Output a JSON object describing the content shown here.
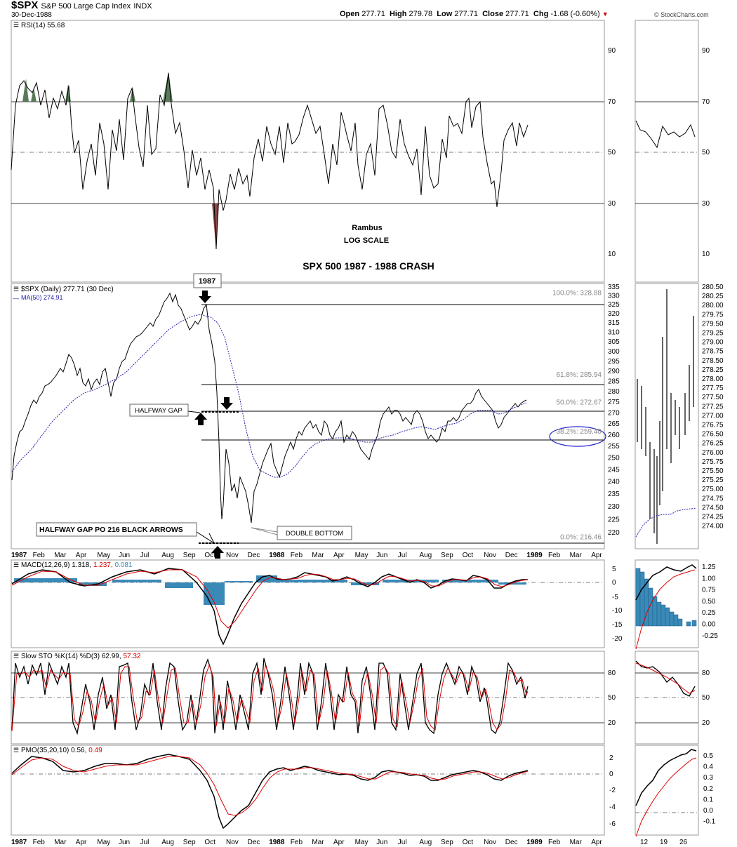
{
  "header": {
    "symbol": "$SPX",
    "name": "S&P 500 Large Cap Index",
    "exchange": "INDX",
    "date": "30-Dec-1988",
    "open_label": "Open",
    "open": "277.71",
    "high_label": "High",
    "high": "279.78",
    "low_label": "Low",
    "low": "277.71",
    "close_label": "Close",
    "close": "277.71",
    "chg_label": "Chg",
    "chg": "-1.68 (-0.60%)",
    "watermark": "© StockCharts.com"
  },
  "annotations": {
    "author": "Rambus",
    "scale": "LOG SCALE",
    "title": "SPX 500 1987 - 1988 CRASH",
    "top_label": "1987",
    "halfway_gap": "HALFWAY GAP",
    "gap_po": "HALFWAY GAP PO 216 BLACK ARROWS",
    "double_bottom": "DOUBLE BOTTOM"
  },
  "colors": {
    "price": "#000000",
    "ma": "#2222aa",
    "signal": "#dd0000",
    "histogram": "#3a8ab8",
    "rsi_over": "#5a7a5a",
    "grid": "#000000",
    "ellipse": "#2222cc"
  },
  "chart_data": [
    {
      "type": "line",
      "name": "RSI",
      "legend": "RSI(14) 55.68",
      "y_ticks": [
        "90",
        "70",
        "50",
        "30",
        "10"
      ],
      "ylim": [
        0,
        100
      ],
      "levels": [
        70,
        50,
        30
      ],
      "ticks_daily": [
        "90",
        "70",
        "50",
        "30",
        "10"
      ],
      "weekly_x_labels": [
        "12",
        "19",
        "26"
      ]
    },
    {
      "type": "line",
      "name": "Price",
      "legend_price": "$SPX (Daily) 277.71 (30 Dec)",
      "legend_ma": "MA(50) 274.91",
      "scale": "log",
      "ylim": [
        214,
        337
      ],
      "y_ticks": [
        "335",
        "330",
        "325",
        "320",
        "315",
        "310",
        "305",
        "300",
        "295",
        "290",
        "285",
        "280",
        "275",
        "270",
        "265",
        "260",
        "255",
        "250",
        "245",
        "240",
        "235",
        "230",
        "225",
        "220"
      ],
      "fib_levels": [
        {
          "label": "100.0%: 328.88",
          "value": 328.88
        },
        {
          "label": "61.8%: 285.94",
          "value": 285.94
        },
        {
          "label": "50.0%: 272.67",
          "value": 272.67
        },
        {
          "label": "38.2%: 259.40",
          "value": 259.4
        },
        {
          "label": "0.0%: 216.46",
          "value": 216.46
        }
      ],
      "x_labels": [
        "1987",
        "Feb",
        "Mar",
        "Apr",
        "May",
        "Jun",
        "Jul",
        "Aug",
        "Sep",
        "Oct",
        "Nov",
        "Dec",
        "1988",
        "Feb",
        "Mar",
        "Apr",
        "May",
        "Jun",
        "Jul",
        "Aug",
        "Sep",
        "Oct",
        "Nov",
        "Dec",
        "1989",
        "Feb",
        "Mar",
        "Apr"
      ],
      "key_points": [
        {
          "date": "1987-01",
          "value": 246
        },
        {
          "date": "1987-02",
          "value": 282
        },
        {
          "date": "1987-03",
          "value": 295
        },
        {
          "date": "1987-04",
          "value": 282
        },
        {
          "date": "1987-05",
          "value": 288
        },
        {
          "date": "1987-06",
          "value": 300
        },
        {
          "date": "1987-07",
          "value": 316
        },
        {
          "date": "1987-08",
          "value": 334
        },
        {
          "date": "1987-09",
          "value": 318
        },
        {
          "date": "1987-10",
          "value": 328
        },
        {
          "date": "1987-10-19",
          "value": 224
        },
        {
          "date": "1987-11",
          "value": 246
        },
        {
          "date": "1987-12",
          "value": 225
        },
        {
          "date": "1988-01",
          "value": 255
        },
        {
          "date": "1988-04",
          "value": 270
        },
        {
          "date": "1988-05",
          "value": 253
        },
        {
          "date": "1988-07",
          "value": 272
        },
        {
          "date": "1988-09",
          "value": 261
        },
        {
          "date": "1988-10",
          "value": 281
        },
        {
          "date": "1988-11",
          "value": 266
        },
        {
          "date": "1988-12",
          "value": 277.71
        }
      ],
      "weekly_y_ticks": [
        "280.50",
        "280.25",
        "280.00",
        "279.75",
        "279.50",
        "279.25",
        "279.00",
        "278.75",
        "278.50",
        "278.25",
        "278.00",
        "277.75",
        "277.50",
        "277.25",
        "277.00",
        "276.75",
        "276.50",
        "276.25",
        "276.00",
        "275.75",
        "275.50",
        "275.25",
        "275.00",
        "274.75",
        "274.50",
        "274.25",
        "274.00"
      ]
    },
    {
      "type": "bar",
      "name": "MACD",
      "legend_a": "MACD(12,26,9)",
      "legend_b": "1.318,",
      "legend_c": "1.237,",
      "legend_d": "0.081",
      "y_ticks": [
        "5",
        "0",
        "-5",
        "-10",
        "-15",
        "-20"
      ],
      "weekly_y_ticks": [
        "1.25",
        "1.00",
        "0.75",
        "0.50",
        "0.25",
        "0.00",
        "-0.25"
      ]
    },
    {
      "type": "line",
      "name": "Slow STO",
      "legend_a": "Slow STO %K(14) %D(3)",
      "legend_b": "62.99,",
      "legend_c": "57.32",
      "y_ticks": [
        "80",
        "50",
        "20"
      ],
      "levels": [
        80,
        50,
        20
      ]
    },
    {
      "type": "line",
      "name": "PMO",
      "legend_a": "PMO(35,20,10)",
      "legend_b": "0.56,",
      "legend_c": "0.49",
      "y_ticks": [
        "2",
        "0",
        "-2",
        "-4",
        "-6"
      ],
      "weekly_y_ticks": [
        "0.5",
        "0.4",
        "0.3",
        "0.2",
        "0.1",
        "0.0",
        "-0.1"
      ],
      "x_labels": [
        "1987",
        "Feb",
        "Mar",
        "Apr",
        "May",
        "Jun",
        "Jul",
        "Aug",
        "Sep",
        "Oct",
        "Nov",
        "Dec",
        "1988",
        "Feb",
        "Mar",
        "Apr",
        "May",
        "Jun",
        "Jul",
        "Aug",
        "Sep",
        "Oct",
        "Nov",
        "Dec",
        "1989",
        "Feb",
        "Mar",
        "Apr"
      ],
      "weekly_x_labels": [
        "12",
        "19",
        "26"
      ]
    }
  ]
}
